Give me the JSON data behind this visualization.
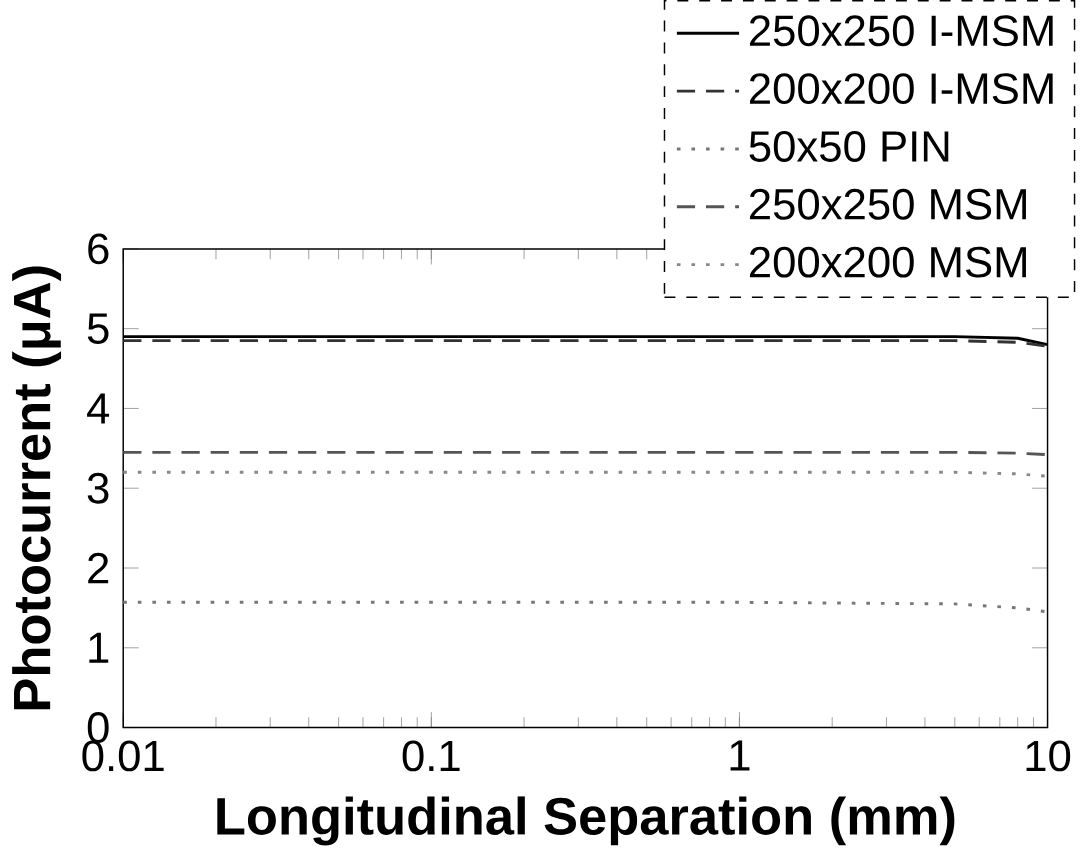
{
  "chart_data": {
    "type": "line",
    "xlabel": "Longitudinal Separation (mm)",
    "ylabel": "Photocurrent (μA)",
    "x": [
      0.01,
      0.1,
      1,
      5,
      8,
      10
    ],
    "series": [
      {
        "name": "250x250 I-MSM",
        "color": "#000000",
        "line_style": "solid",
        "values": [
          4.9,
          4.9,
          4.9,
          4.9,
          4.88,
          4.8
        ]
      },
      {
        "name": "200x200 I-MSM",
        "color": "#333333",
        "line_style": "dashed",
        "values": [
          4.85,
          4.85,
          4.85,
          4.85,
          4.83,
          4.78
        ]
      },
      {
        "name": "50x50 PIN",
        "color": "#777777",
        "line_style": "dotted",
        "values": [
          1.57,
          1.57,
          1.57,
          1.55,
          1.5,
          1.45
        ]
      },
      {
        "name": "250x250 MSM",
        "color": "#555555",
        "line_style": "dashed",
        "values": [
          3.45,
          3.45,
          3.45,
          3.45,
          3.44,
          3.42
        ]
      },
      {
        "name": "200x200 MSM",
        "color": "#888888",
        "line_style": "dotted",
        "values": [
          3.2,
          3.2,
          3.2,
          3.2,
          3.18,
          3.15
        ]
      }
    ],
    "log": "x",
    "xlim": [
      0.01,
      10
    ],
    "xticks": [
      0.01,
      0.1,
      1,
      10
    ],
    "ylim": [
      0,
      6
    ],
    "yticks": [
      0,
      1,
      2,
      3,
      4,
      5,
      6
    ],
    "grid": false,
    "legend": "top right",
    "marker": "none"
  }
}
